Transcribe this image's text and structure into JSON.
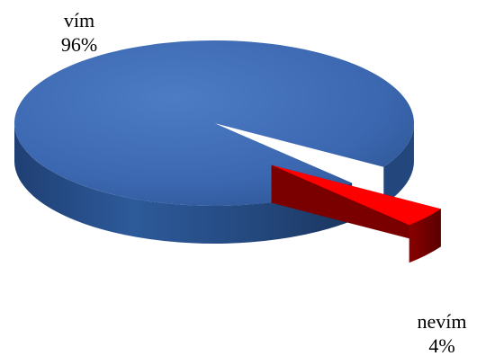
{
  "chart_data": {
    "type": "pie",
    "style": "3d-exploded",
    "grid": false,
    "legend": "none",
    "slices": [
      {
        "name": "vím",
        "percent_label": "96%",
        "value": 96,
        "color": "#3b67b0"
      },
      {
        "name": "nevím",
        "percent_label": "4%",
        "value": 4,
        "color": "#ff0000"
      }
    ]
  }
}
